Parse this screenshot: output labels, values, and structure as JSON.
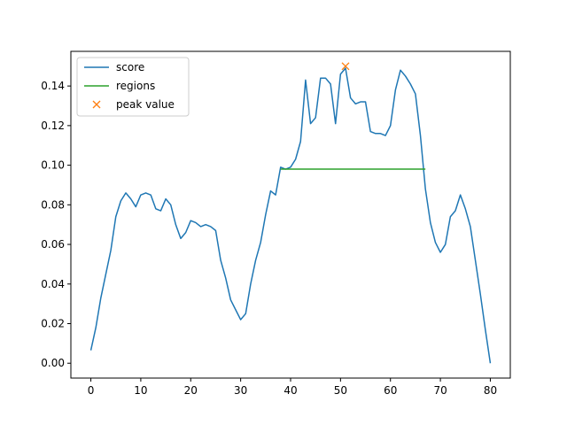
{
  "chart_data": {
    "type": "line",
    "title": "",
    "xlabel": "",
    "ylabel": "",
    "xlim": [
      -4,
      84
    ],
    "ylim": [
      -0.0075,
      0.1575
    ],
    "x_ticks": [
      0,
      10,
      20,
      30,
      40,
      50,
      60,
      70,
      80
    ],
    "x_tick_labels": [
      "0",
      "10",
      "20",
      "30",
      "40",
      "50",
      "60",
      "70",
      "80"
    ],
    "y_ticks": [
      0.0,
      0.02,
      0.04,
      0.06,
      0.08,
      0.1,
      0.12,
      0.14
    ],
    "y_tick_labels": [
      "0.00",
      "0.02",
      "0.04",
      "0.06",
      "0.08",
      "0.10",
      "0.12",
      "0.14"
    ],
    "grid": false,
    "legend_position": "upper-left",
    "series": [
      {
        "name": "score",
        "color": "#1f77b4",
        "style": "line",
        "x": [
          0,
          1,
          2,
          3,
          4,
          5,
          6,
          7,
          8,
          9,
          10,
          11,
          12,
          13,
          14,
          15,
          16,
          17,
          18,
          19,
          20,
          21,
          22,
          23,
          24,
          25,
          26,
          27,
          28,
          29,
          30,
          31,
          32,
          33,
          34,
          35,
          36,
          37,
          38,
          39,
          40,
          41,
          42,
          43,
          44,
          45,
          46,
          47,
          48,
          49,
          50,
          51,
          52,
          53,
          54,
          55,
          56,
          57,
          58,
          59,
          60,
          61,
          62,
          63,
          64,
          65,
          66,
          67,
          68,
          69,
          70,
          71,
          72,
          73,
          74,
          75,
          76,
          77,
          78,
          79,
          80
        ],
        "y": [
          0.0065,
          0.018,
          0.033,
          0.045,
          0.057,
          0.074,
          0.082,
          0.086,
          0.083,
          0.079,
          0.085,
          0.086,
          0.085,
          0.078,
          0.077,
          0.083,
          0.08,
          0.07,
          0.063,
          0.066,
          0.072,
          0.071,
          0.069,
          0.07,
          0.069,
          0.067,
          0.052,
          0.043,
          0.032,
          0.027,
          0.022,
          0.025,
          0.04,
          0.052,
          0.061,
          0.075,
          0.087,
          0.085,
          0.099,
          0.098,
          0.099,
          0.103,
          0.112,
          0.143,
          0.121,
          0.124,
          0.144,
          0.144,
          0.141,
          0.121,
          0.146,
          0.149,
          0.134,
          0.131,
          0.132,
          0.132,
          0.117,
          0.116,
          0.116,
          0.115,
          0.12,
          0.138,
          0.148,
          0.145,
          0.141,
          0.136,
          0.115,
          0.088,
          0.071,
          0.061,
          0.056,
          0.06,
          0.074,
          0.077,
          0.085,
          0.078,
          0.069,
          0.052,
          0.035,
          0.017,
          0.0
        ]
      },
      {
        "name": "regions",
        "color": "#2ca02c",
        "style": "line",
        "x": [
          38,
          67
        ],
        "y": [
          0.098,
          0.098
        ]
      },
      {
        "name": "peak value",
        "color": "#ff7f0e",
        "style": "marker-x",
        "x": [
          51
        ],
        "y": [
          0.15
        ]
      }
    ]
  }
}
